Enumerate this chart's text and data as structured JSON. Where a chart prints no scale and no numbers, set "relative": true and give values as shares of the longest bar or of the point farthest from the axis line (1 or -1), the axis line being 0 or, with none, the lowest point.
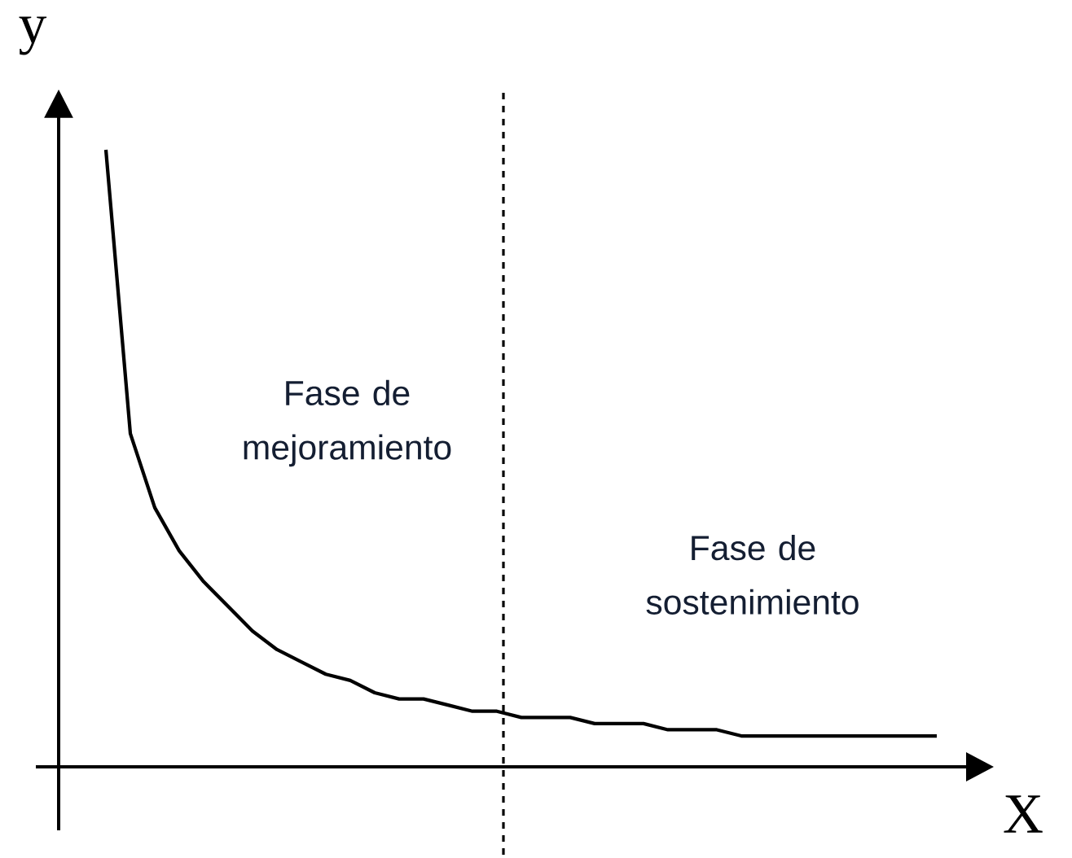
{
  "chart_data": {
    "type": "line",
    "relative": true,
    "xlabel": "X",
    "ylabel": "y",
    "categories": [
      null,
      null,
      null,
      null,
      null,
      null,
      null,
      null,
      null,
      null,
      null,
      null,
      null,
      null,
      null,
      null,
      null,
      null,
      null,
      null,
      null,
      null,
      null,
      null,
      null,
      null,
      null,
      null,
      null,
      null,
      null,
      null,
      null,
      null,
      null
    ],
    "series": [
      {
        "color": "#000000",
        "values": [
          1.0,
          0.54,
          0.42,
          0.35,
          0.3,
          0.26,
          0.22,
          0.19,
          0.17,
          0.15,
          0.14,
          0.12,
          0.11,
          0.11,
          0.1,
          0.09,
          0.09,
          0.08,
          0.08,
          0.08,
          0.07,
          0.07,
          0.07,
          0.06,
          0.06,
          0.06,
          0.05,
          0.05,
          0.05,
          0.05,
          0.05,
          0.05,
          0.05,
          0.05,
          0.05
        ]
      }
    ],
    "annotations": [
      "Fase de mejoramiento",
      "Fase de sostenimiento"
    ],
    "marker": "none",
    "line_style": "solid"
  }
}
